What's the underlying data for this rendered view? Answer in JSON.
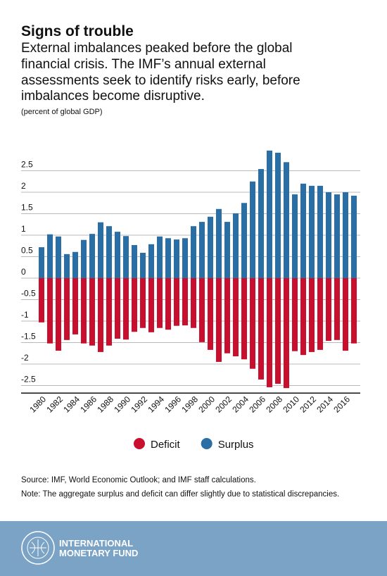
{
  "chart_data": {
    "type": "bar",
    "title": "Signs of trouble",
    "subtitle": [
      "External imbalances peaked before the global",
      "financial crisis. The IMF’s annual external",
      "assessments seek to identify risks early, before",
      "imbalances become disruptive."
    ],
    "y_label": "(percent of global GDP)",
    "categories": [
      "1980",
      null,
      "1982",
      null,
      "1984",
      null,
      "1986",
      null,
      "1988",
      null,
      "1990",
      null,
      "1992",
      null,
      "1994",
      null,
      "1996",
      null,
      "1998",
      null,
      "2000",
      null,
      "2002",
      null,
      "2004",
      null,
      "2006",
      null,
      "2008",
      null,
      "2010",
      null,
      "2012",
      null,
      "2014",
      null,
      "2016",
      null
    ],
    "series": [
      {
        "name": "Deficit",
        "color": "#c8102e",
        "values": [
          -1.03,
          -1.52,
          -1.69,
          -1.44,
          -1.31,
          -1.52,
          -1.57,
          -1.72,
          -1.57,
          -1.41,
          -1.43,
          -1.25,
          -1.16,
          -1.26,
          -1.16,
          -1.2,
          -1.11,
          -1.1,
          -1.16,
          -1.49,
          -1.67,
          -1.95,
          -1.75,
          -1.82,
          -1.89,
          -2.11,
          -2.36,
          -2.54,
          -2.46,
          -2.56,
          -1.7,
          -1.79,
          -1.72,
          -1.67,
          -1.46,
          -1.44,
          -1.69,
          -1.52
        ]
      },
      {
        "name": "Surplus",
        "color": "#2a6ea6",
        "values": [
          0.72,
          1.02,
          0.97,
          0.56,
          0.61,
          0.89,
          1.03,
          1.3,
          1.21,
          1.08,
          0.98,
          0.77,
          0.59,
          0.79,
          0.97,
          0.93,
          0.9,
          0.93,
          1.21,
          1.31,
          1.43,
          1.61,
          1.31,
          1.51,
          1.75,
          2.25,
          2.54,
          2.97,
          2.92,
          2.7,
          1.95,
          2.2,
          2.15,
          2.15,
          2.0,
          1.95,
          2.0,
          1.92
        ]
      }
    ],
    "ylim": [
      -2.7,
      3.0
    ],
    "yticks": [
      2.5,
      2,
      1.5,
      1,
      0.5,
      0,
      -0.5,
      -1,
      -1.5,
      -2,
      -2.5
    ],
    "grid": true,
    "legend": "bottom",
    "notes": [
      "Source: IMF, World Economic Outlook; and IMF staff calculations.",
      "Note: The aggregate surplus and deficit can differ slightly due to statistical discrepancies."
    ]
  },
  "footer": {
    "org": [
      "INTERNATIONAL",
      "MONETARY FUND"
    ]
  }
}
